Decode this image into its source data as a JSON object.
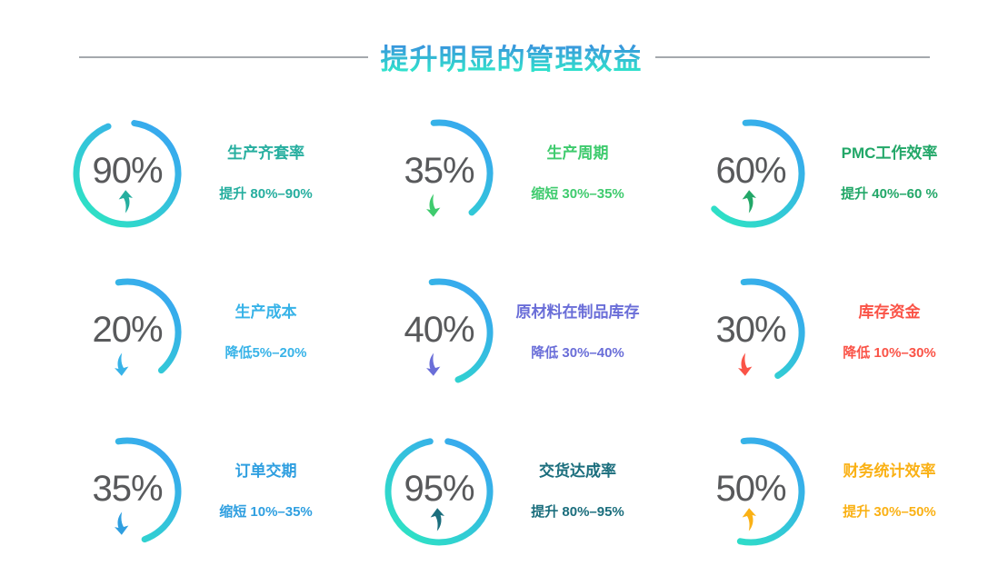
{
  "header": {
    "title": "提升明显的管理效益",
    "title_gradient": [
      "#3a86e0",
      "#30e6cb"
    ],
    "rule_color": "#a5a9ad"
  },
  "chart_data": {
    "type": "ring-grid",
    "title": "提升明显的管理效益",
    "ring_style": {
      "gradient": [
        "#38a7f0",
        "#2ee2c4"
      ],
      "number_color": "#58595b",
      "stroke_width": 7
    },
    "items": [
      {
        "value_label": "90%",
        "percent": 90,
        "direction": "up",
        "title": "生产齐套率",
        "desc": "提升 80%–90%",
        "accent": "#26ae9f",
        "arc_start": 8,
        "arc_sweep": 330
      },
      {
        "value_label": "35%",
        "percent": 35,
        "direction": "down",
        "title": "生产周期",
        "desc": "缩短 30%–35%",
        "accent": "#3fcb6e",
        "arc_start": -6,
        "arc_sweep": 146
      },
      {
        "value_label": "60%",
        "percent": 60,
        "direction": "up",
        "title": "PMC工作效率",
        "desc": "提升 40%–60 %",
        "accent": "#22a768",
        "arc_start": -6,
        "arc_sweep": 232
      },
      {
        "value_label": "20%",
        "percent": 20,
        "direction": "down",
        "title": "生产成本",
        "desc": "降低5%–20%",
        "accent": "#38b3e8",
        "arc_start": -10,
        "arc_sweep": 148
      },
      {
        "value_label": "40%",
        "percent": 40,
        "direction": "down",
        "title": "原材料在制品库存",
        "desc": "降低 30%–40%",
        "accent": "#6a6ed8",
        "arc_start": -8,
        "arc_sweep": 166
      },
      {
        "value_label": "30%",
        "percent": 30,
        "direction": "down",
        "title": "库存资金",
        "desc": "降低 10%–30%",
        "accent": "#fa5347",
        "arc_start": -8,
        "arc_sweep": 156
      },
      {
        "value_label": "35%",
        "percent": 35,
        "direction": "down",
        "title": "订单交期",
        "desc": "缩短 10%–35%",
        "accent": "#2f9fe0",
        "arc_start": -10,
        "arc_sweep": 170
      },
      {
        "value_label": "95%",
        "percent": 95,
        "direction": "up",
        "title": "交货达成率",
        "desc": "提升 80%–95%",
        "accent": "#1b6e7d",
        "arc_start": 10,
        "arc_sweep": 340
      },
      {
        "value_label": "50%",
        "percent": 50,
        "direction": "up",
        "title": "财务统计效率",
        "desc": "提升 30%–50%",
        "accent": "#fab115",
        "arc_start": -8,
        "arc_sweep": 200
      }
    ]
  }
}
